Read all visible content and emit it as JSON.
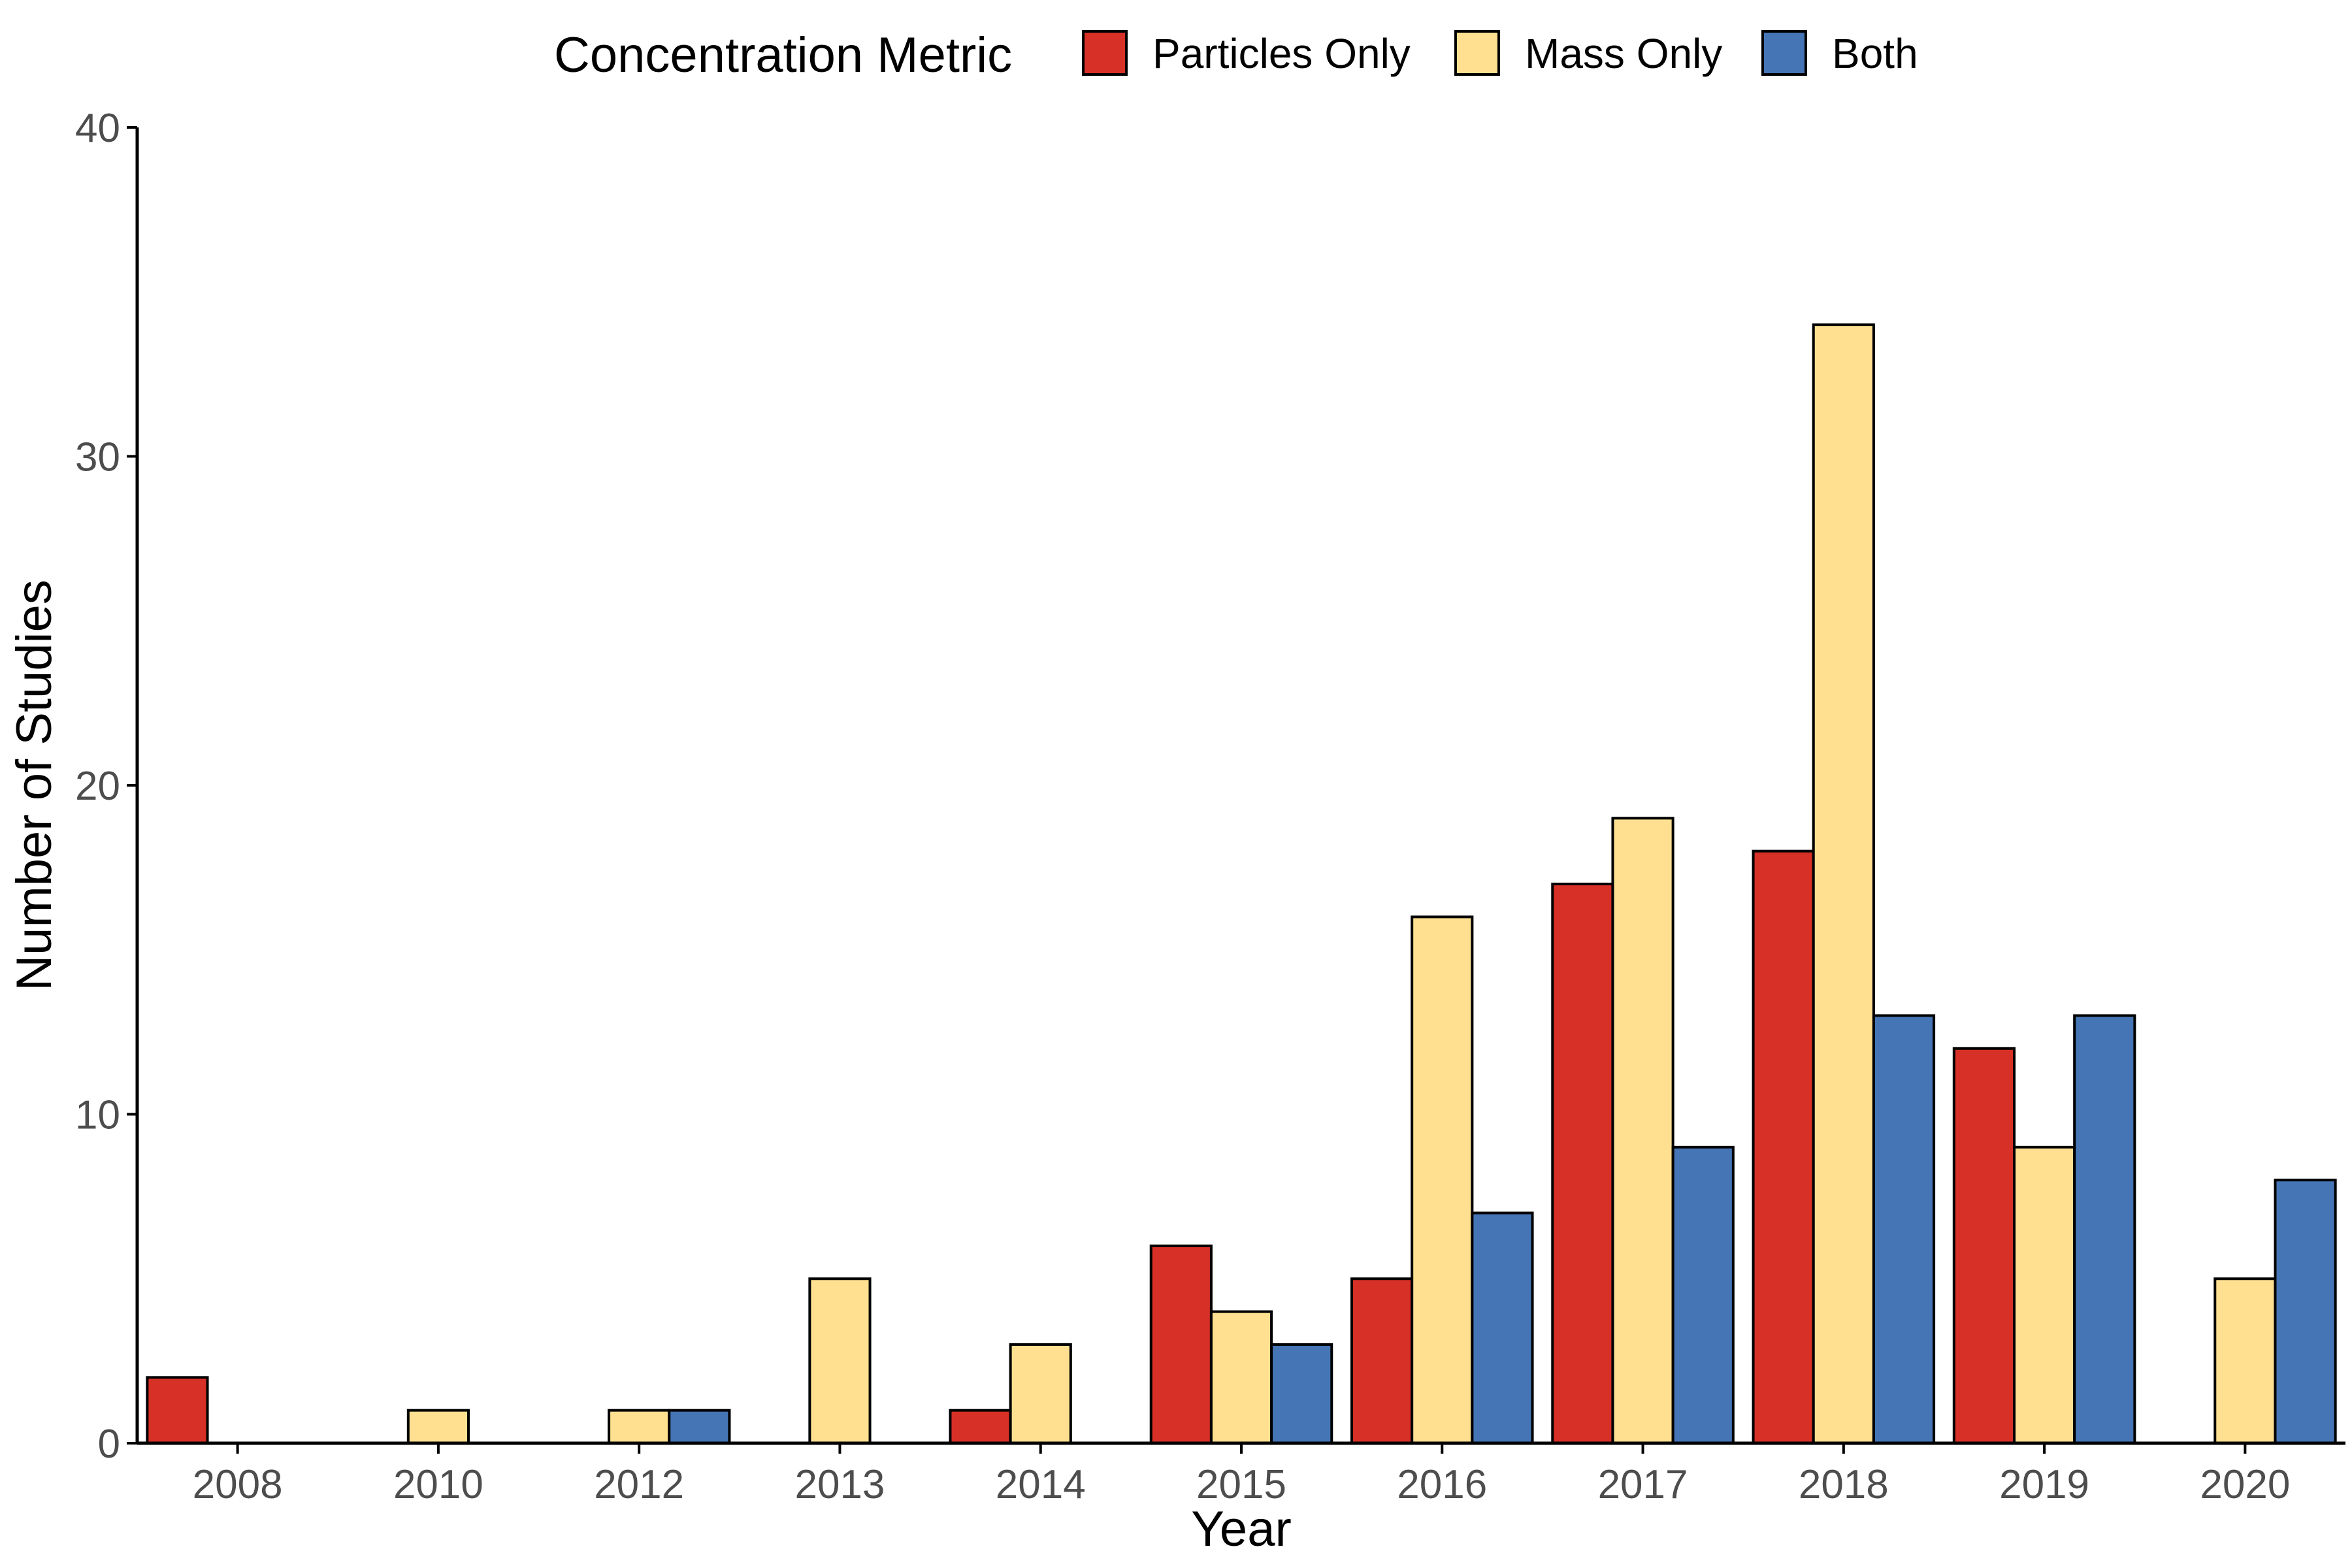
{
  "chart_data": {
    "type": "bar",
    "xlabel": "Year",
    "ylabel": "Number of Studies",
    "ylim": [
      0,
      40
    ],
    "yticks": [
      0,
      10,
      20,
      30,
      40
    ],
    "grid": false,
    "legend": {
      "title": "Concentration Metric",
      "position": "top"
    },
    "categories": [
      "2008",
      "2010",
      "2012",
      "2013",
      "2014",
      "2015",
      "2016",
      "2017",
      "2018",
      "2019",
      "2020"
    ],
    "series": [
      {
        "name": "Particles Only",
        "color": "#D73027",
        "values": [
          2,
          null,
          null,
          null,
          1,
          6,
          5,
          17,
          18,
          12,
          null
        ]
      },
      {
        "name": "Mass Only",
        "color": "#FEE090",
        "values": [
          null,
          1,
          1,
          5,
          3,
          4,
          16,
          19,
          34,
          9,
          5
        ]
      },
      {
        "name": "Both",
        "color": "#4575B4",
        "values": [
          null,
          null,
          1,
          null,
          null,
          3,
          7,
          9,
          13,
          13,
          8
        ]
      }
    ]
  }
}
